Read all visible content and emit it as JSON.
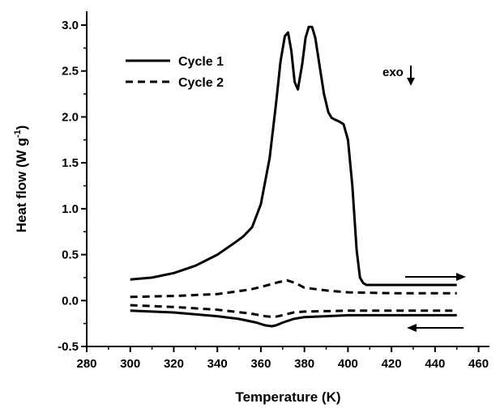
{
  "chart_data": {
    "type": "line",
    "xlabel": "Temperature (K)",
    "ylabel_main": "Heat flow (W g",
    "ylabel_sup": "-1",
    "ylabel_tail": ")",
    "xlim": [
      280,
      465
    ],
    "ylim": [
      -0.5,
      3.15
    ],
    "xticks": [
      280,
      300,
      320,
      340,
      360,
      380,
      400,
      420,
      440,
      460
    ],
    "yticks": [
      -0.5,
      0.0,
      0.5,
      1.0,
      1.5,
      2.0,
      2.5,
      3.0
    ],
    "ytick_labels": [
      "-0.5",
      "0.0",
      "0.5",
      "1.0",
      "1.5",
      "2.0",
      "2.5",
      "3.0"
    ],
    "grid": false,
    "legend_position": "top-left",
    "annotation": "exo",
    "series": [
      {
        "name": "Cycle 1",
        "style": "solid",
        "segment": "heating",
        "x": [
          300,
          310,
          320,
          330,
          340,
          348,
          352,
          356,
          360,
          364,
          367,
          369,
          371,
          372.5,
          374,
          375.5,
          377,
          379,
          380.5,
          382,
          383.5,
          385,
          387,
          389,
          391,
          392.5,
          394,
          396,
          398,
          400,
          402,
          404,
          405.5,
          407,
          408.5,
          410,
          415,
          420,
          430,
          440,
          450
        ],
        "y": [
          0.23,
          0.25,
          0.3,
          0.38,
          0.5,
          0.63,
          0.7,
          0.8,
          1.05,
          1.55,
          2.15,
          2.6,
          2.88,
          2.92,
          2.72,
          2.38,
          2.3,
          2.58,
          2.86,
          2.98,
          2.98,
          2.86,
          2.55,
          2.25,
          2.05,
          1.99,
          1.97,
          1.95,
          1.92,
          1.75,
          1.25,
          0.55,
          0.25,
          0.19,
          0.17,
          0.17,
          0.17,
          0.17,
          0.17,
          0.17,
          0.17
        ]
      },
      {
        "name": "Cycle 1",
        "style": "solid",
        "segment": "cooling",
        "x": [
          300,
          320,
          340,
          350,
          358,
          362,
          365,
          367,
          370,
          375,
          380,
          390,
          400,
          420,
          450
        ],
        "y": [
          -0.11,
          -0.13,
          -0.17,
          -0.2,
          -0.24,
          -0.27,
          -0.28,
          -0.27,
          -0.24,
          -0.2,
          -0.18,
          -0.17,
          -0.16,
          -0.16,
          -0.16
        ]
      },
      {
        "name": "Cycle 2",
        "style": "dashed",
        "segment": "heating",
        "x": [
          300,
          320,
          340,
          355,
          362,
          368,
          372,
          376,
          380,
          390,
          400,
          420,
          450
        ],
        "y": [
          0.04,
          0.05,
          0.07,
          0.12,
          0.16,
          0.2,
          0.22,
          0.19,
          0.14,
          0.11,
          0.09,
          0.08,
          0.08
        ]
      },
      {
        "name": "Cycle 2",
        "style": "dashed",
        "segment": "cooling",
        "x": [
          300,
          320,
          340,
          355,
          362,
          366,
          370,
          375,
          380,
          400,
          420,
          450
        ],
        "y": [
          -0.05,
          -0.07,
          -0.1,
          -0.14,
          -0.17,
          -0.18,
          -0.16,
          -0.13,
          -0.12,
          -0.11,
          -0.11,
          -0.11
        ]
      }
    ]
  }
}
